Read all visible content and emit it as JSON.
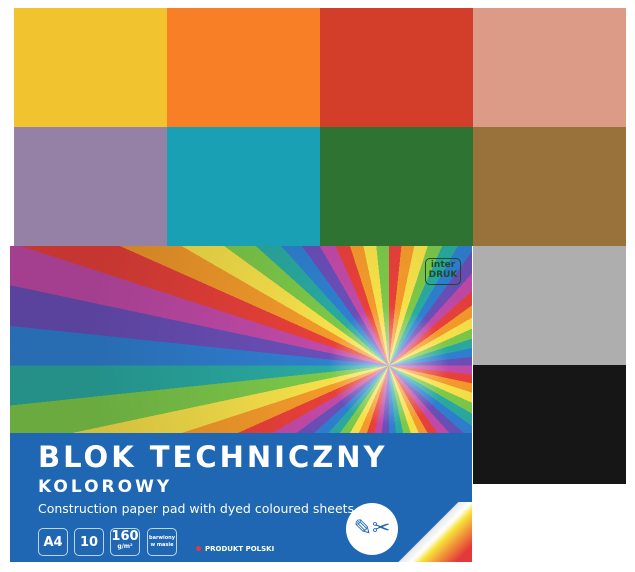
{
  "swatches": [
    "#f1c32e",
    "#f97f26",
    "#d23e2a",
    "#dc9b87",
    "#9580a6",
    "#1aa0b5",
    "#2f7332",
    "#98713b",
    "#aeaeae",
    "#161616"
  ],
  "cover": {
    "brand": "inter DRUK",
    "title": "BLOK TECHNICZNY",
    "subtitle": "KOLOROWY",
    "description": "Construction paper pad with dyed coloured sheets",
    "format": "A4",
    "sheets": "10",
    "weight": "160",
    "weight_unit": "g/m²",
    "dyed_label": "barwiony w masie",
    "origin": "PRODUKT POLSKI",
    "band_color": "#1f66b3",
    "icons": [
      "pencil-icon",
      "scissors-icon"
    ]
  }
}
